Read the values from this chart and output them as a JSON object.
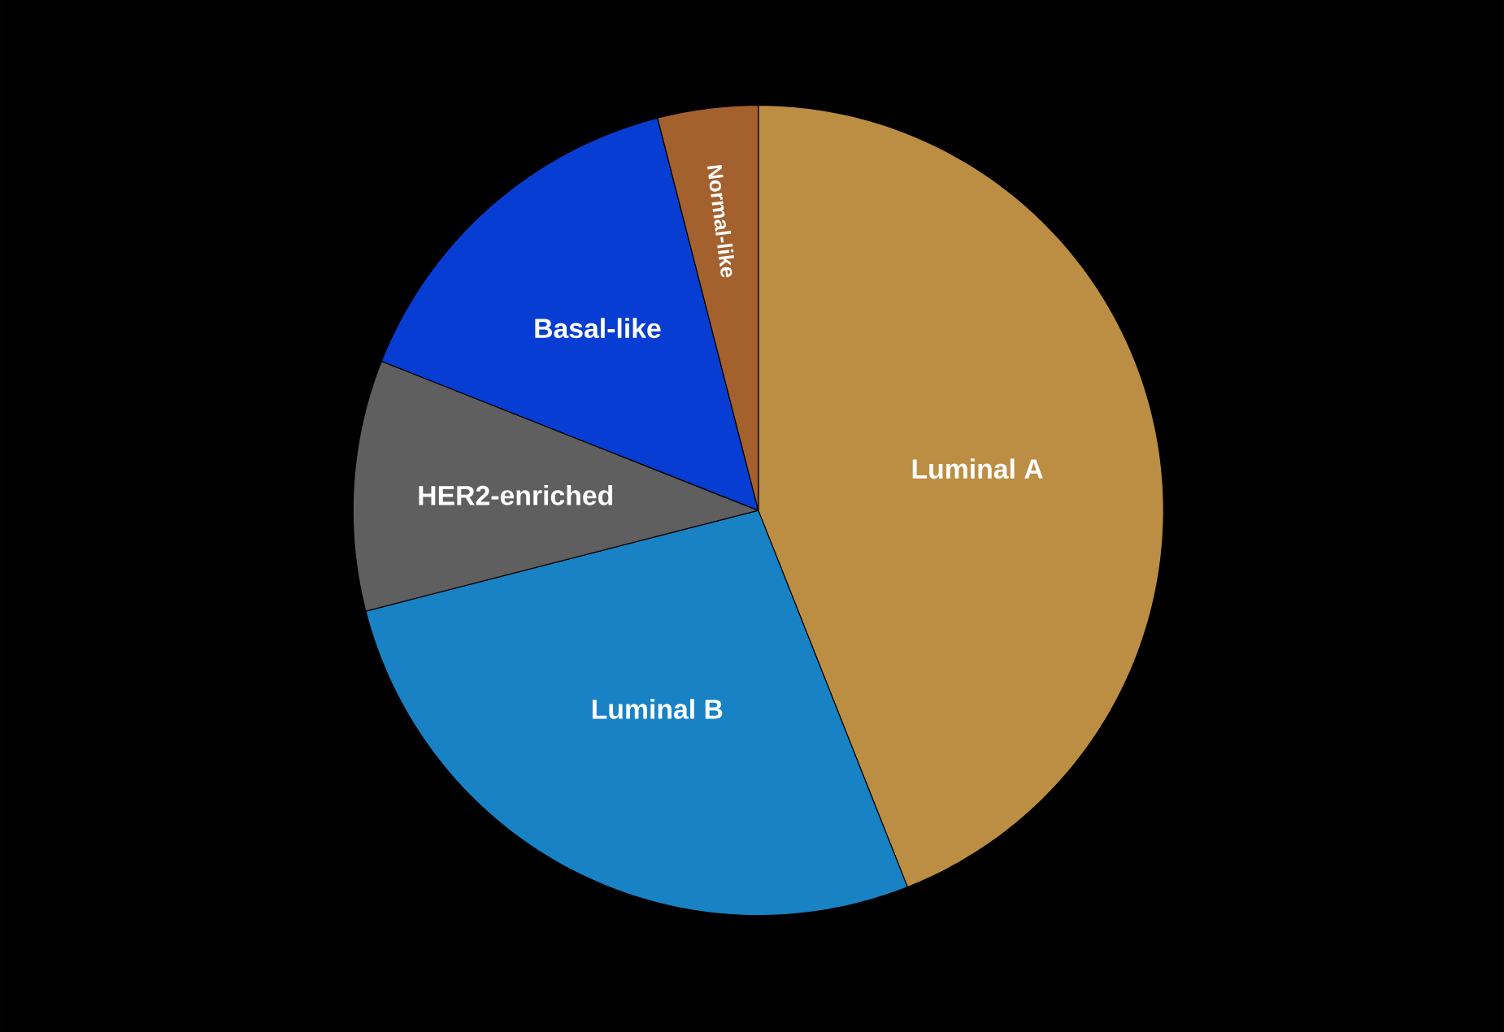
{
  "chart_data": {
    "type": "pie",
    "categories": [
      "Luminal A",
      "Luminal B",
      "HER2-enriched",
      "Basal-like",
      "Normal-like"
    ],
    "values": [
      44,
      27,
      10,
      15,
      4
    ],
    "colors": [
      "#bc8e43",
      "#1982c4",
      "#5f5f5f",
      "#073dd3",
      "#a4612e"
    ]
  }
}
